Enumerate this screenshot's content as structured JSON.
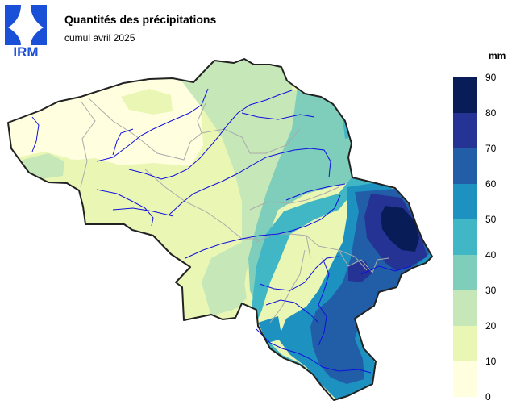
{
  "header": {
    "logo_text": "IRM",
    "title": "Quantités des précipitations",
    "subtitle": "cumul avril 2025"
  },
  "legend": {
    "unit": "mm",
    "ticks": [
      "0",
      "10",
      "20",
      "30",
      "40",
      "50",
      "60",
      "70",
      "80",
      "90"
    ],
    "classes": [
      {
        "range": [
          0,
          10
        ],
        "color": "#ffffe0"
      },
      {
        "range": [
          10,
          20
        ],
        "color": "#eaf6b4"
      },
      {
        "range": [
          20,
          30
        ],
        "color": "#c6e7b8"
      },
      {
        "range": [
          30,
          40
        ],
        "color": "#7fcdbb"
      },
      {
        "range": [
          40,
          50
        ],
        "color": "#41b6c4"
      },
      {
        "range": [
          50,
          60
        ],
        "color": "#1d91c0"
      },
      {
        "range": [
          60,
          70
        ],
        "color": "#225ea8"
      },
      {
        "range": [
          70,
          80
        ],
        "color": "#253494"
      },
      {
        "range": [
          80,
          90
        ],
        "color": "#081d58"
      }
    ]
  },
  "colors": {
    "logo": "#1a4fd8",
    "river": "#1010dd",
    "border": "#222222",
    "province_line": "#aaaaaa"
  }
}
